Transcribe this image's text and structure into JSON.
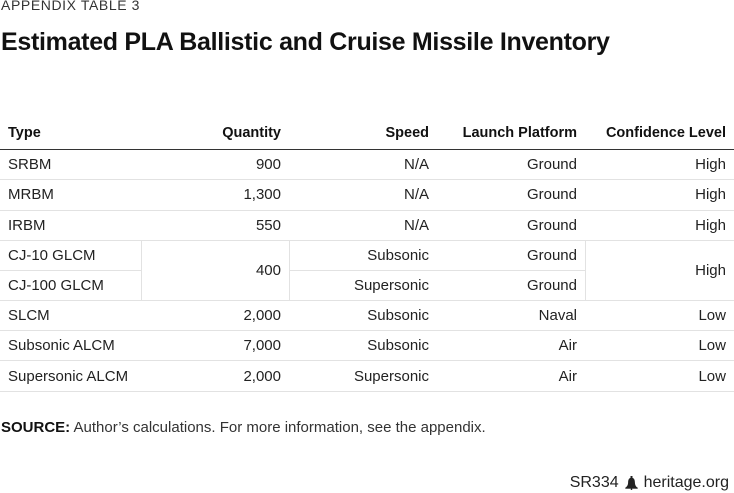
{
  "eyebrow": "APPENDIX TABLE 3",
  "title": "Estimated PLA Ballistic and Cruise Missile Inventory",
  "table": {
    "headers": {
      "type": "Type",
      "quantity": "Quantity",
      "speed": "Speed",
      "launch": "Launch Platform",
      "confidence": "Confidence Level"
    },
    "rows_top": [
      {
        "type": "SRBM",
        "quantity": "900",
        "speed": "N/A",
        "launch": "Ground",
        "confidence": "High"
      },
      {
        "type": "MRBM",
        "quantity": "1,300",
        "speed": "N/A",
        "launch": "Ground",
        "confidence": "High"
      },
      {
        "type": "IRBM",
        "quantity": "550",
        "speed": "N/A",
        "launch": "Ground",
        "confidence": "High"
      }
    ],
    "merged": {
      "quantity": "400",
      "confidence": "High",
      "rows": [
        {
          "type": "CJ-10 GLCM",
          "speed": "Subsonic",
          "launch": "Ground"
        },
        {
          "type": "CJ-100 GLCM",
          "speed": "Supersonic",
          "launch": "Ground"
        }
      ]
    },
    "rows_bottom": [
      {
        "type": "SLCM",
        "quantity": "2,000",
        "speed": "Subsonic",
        "launch": "Naval",
        "confidence": "Low"
      },
      {
        "type": "Subsonic ALCM",
        "quantity": "7,000",
        "speed": "Subsonic",
        "launch": "Air",
        "confidence": "Low"
      },
      {
        "type": "Supersonic ALCM",
        "quantity": "2,000",
        "speed": "Supersonic",
        "launch": "Air",
        "confidence": "Low"
      }
    ]
  },
  "source": {
    "label": "SOURCE:",
    "text": "Author’s calculations. For more information, see the appendix."
  },
  "footer": {
    "code": "SR334",
    "site": "heritage.org",
    "icon": "liberty-bell-icon"
  }
}
